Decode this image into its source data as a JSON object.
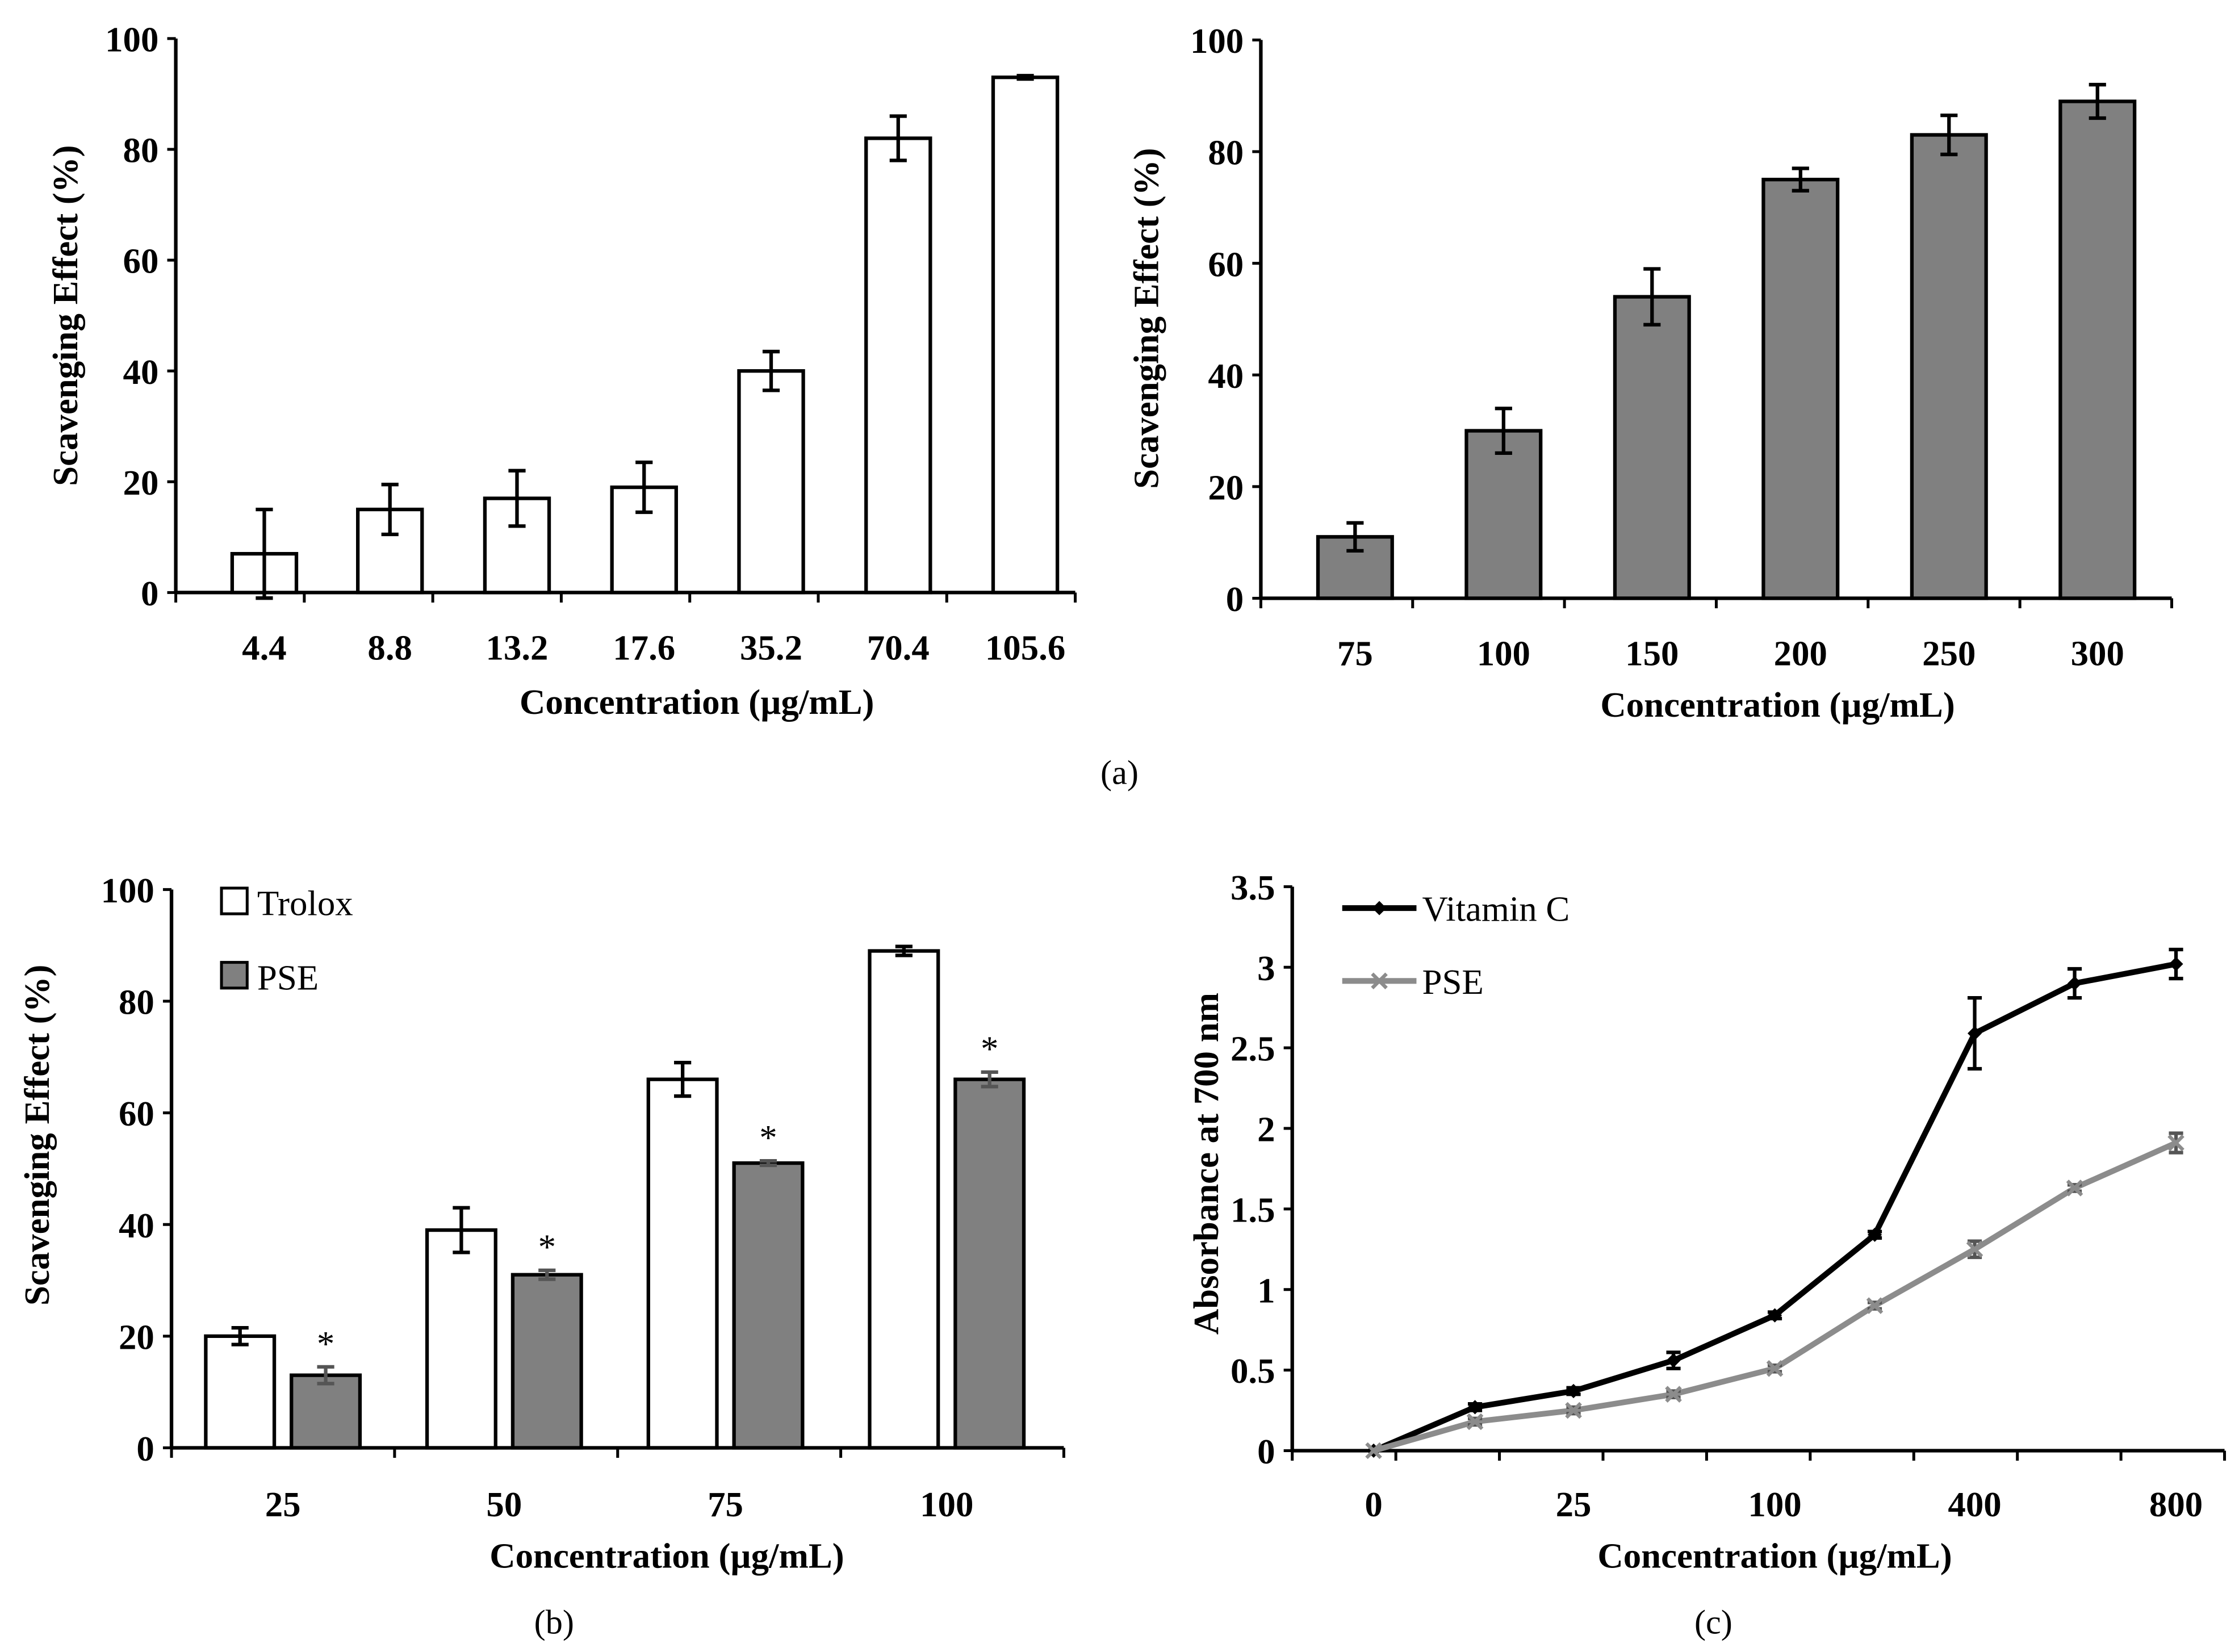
{
  "colors": {
    "white_bar": "#ffffff",
    "gray_bar": "#808080",
    "vitc_line": "#000000",
    "pse_line": "#8c8c8c",
    "pse_err": "#555555"
  },
  "chart_data": [
    {
      "id": "a-left",
      "type": "bar",
      "panel": "(a)",
      "categories": [
        "4.4",
        "8.8",
        "13.2",
        "17.6",
        "35.2",
        "70.4",
        "105.6"
      ],
      "series": [
        {
          "name": "",
          "values": [
            7,
            15,
            17,
            19,
            40,
            82,
            93
          ],
          "errors": [
            8,
            4.5,
            5,
            4.5,
            3.5,
            4,
            0.3
          ],
          "color": "#ffffff"
        }
      ],
      "xlabel": "Concentration (µg/mL)",
      "ylabel": "Scavenging Effect (%)",
      "ylim": [
        0,
        100
      ],
      "yticks": [
        "0",
        "20",
        "40",
        "60",
        "80",
        "100"
      ]
    },
    {
      "id": "a-right",
      "type": "bar",
      "categories": [
        "75",
        "100",
        "150",
        "200",
        "250",
        "300"
      ],
      "series": [
        {
          "name": "",
          "values": [
            11,
            30,
            54,
            75,
            83,
            89
          ],
          "errors": [
            2.5,
            4,
            5,
            2,
            3.5,
            3
          ],
          "color": "#808080"
        }
      ],
      "xlabel": "Concentration (µg/mL)",
      "ylabel": "Scavenging Effect (%)",
      "ylim": [
        0,
        100
      ],
      "yticks": [
        "0",
        "20",
        "40",
        "60",
        "80",
        "100"
      ]
    },
    {
      "id": "b",
      "type": "bar",
      "panel": "(b)",
      "categories": [
        "25",
        "50",
        "75",
        "100"
      ],
      "series": [
        {
          "name": "Trolox",
          "values": [
            20,
            39,
            66,
            89
          ],
          "errors": [
            1.5,
            4,
            3,
            0.8
          ],
          "color": "#ffffff"
        },
        {
          "name": "PSE",
          "values": [
            13,
            31,
            51,
            66
          ],
          "errors": [
            1.5,
            0.8,
            0.4,
            1.3
          ],
          "color": "#808080",
          "annotation": "*"
        }
      ],
      "xlabel": "Concentration (µg/mL)",
      "ylabel": "Scavenging Effect (%)",
      "ylim": [
        0,
        100
      ],
      "yticks": [
        "0",
        "20",
        "40",
        "60",
        "80",
        "100"
      ],
      "legend": "top-left"
    },
    {
      "id": "c",
      "type": "line",
      "panel": "(c)",
      "categories": [
        "0",
        "",
        "25",
        "",
        "100",
        "",
        "400",
        "",
        "800"
      ],
      "series": [
        {
          "name": "Vitamin C",
          "values": [
            0,
            0.27,
            0.37,
            0.56,
            0.84,
            1.34,
            2.59,
            2.9,
            3.02
          ],
          "errors": [
            0,
            0.02,
            0.02,
            0.05,
            0.02,
            0.02,
            0.22,
            0.09,
            0.09
          ],
          "color": "#000000",
          "marker": "diamond"
        },
        {
          "name": "PSE",
          "values": [
            0,
            0.18,
            0.25,
            0.35,
            0.51,
            0.9,
            1.25,
            1.63,
            1.91
          ],
          "errors": [
            0,
            0.02,
            0.02,
            0.02,
            0.02,
            0.02,
            0.05,
            0.02,
            0.06
          ],
          "color": "#8c8c8c",
          "marker": "x"
        }
      ],
      "xlabel": "Concentration (µg/mL)",
      "ylabel": "Absorbance at 700 nm",
      "ylim": [
        0,
        3.5
      ],
      "yticks": [
        "0",
        "0.5",
        "1",
        "1.5",
        "2",
        "2.5",
        "3",
        "3.5"
      ],
      "legend": "top-left"
    }
  ]
}
